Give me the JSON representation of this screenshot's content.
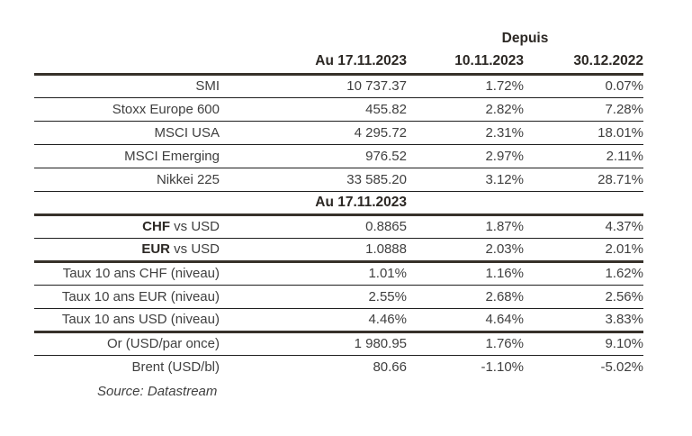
{
  "header": {
    "depuis_label": "Depuis",
    "columns": [
      "Au 17.11.2023",
      "10.11.2023",
      "30.12.2022"
    ]
  },
  "table": {
    "rows": [
      {
        "label": "SMI",
        "values": [
          "10 737.37",
          "1.72%",
          "0.07%"
        ],
        "rule": "thin"
      },
      {
        "label": "Stoxx Europe 600",
        "values": [
          "455.82",
          "2.82%",
          "7.28%"
        ],
        "rule": "thin"
      },
      {
        "label": "MSCI USA",
        "values": [
          "4 295.72",
          "2.31%",
          "18.01%"
        ],
        "rule": "thin"
      },
      {
        "label": "MSCI Emerging",
        "values": [
          "976.52",
          "2.97%",
          "2.11%"
        ],
        "rule": "thin"
      },
      {
        "label": "Nikkei 225",
        "values": [
          "33 585.20",
          "3.12%",
          "28.71%"
        ],
        "rule": "thin"
      },
      {
        "subtitle": "Au 17.11.2023",
        "rule": "thick"
      },
      {
        "label_bold": "CHF",
        "label": " vs USD",
        "values": [
          "0.8865",
          "1.87%",
          "4.37%"
        ],
        "rule": "thin"
      },
      {
        "label_bold": "EUR",
        "label": " vs USD",
        "values": [
          "1.0888",
          "2.03%",
          "2.01%"
        ],
        "rule": "thick"
      },
      {
        "label": "Taux 10 ans CHF (niveau)",
        "values": [
          "1.01%",
          "1.16%",
          "1.62%"
        ],
        "rule": "thin"
      },
      {
        "label": "Taux 10 ans EUR (niveau)",
        "values": [
          "2.55%",
          "2.68%",
          "2.56%"
        ],
        "rule": "thin"
      },
      {
        "label": "Taux 10 ans USD (niveau)",
        "values": [
          "4.46%",
          "4.64%",
          "3.83%"
        ],
        "rule": "thick"
      },
      {
        "label": "Or (USD/par once)",
        "values": [
          "1 980.95",
          "1.76%",
          "9.10%"
        ],
        "rule": "thin"
      },
      {
        "label": "Brent (USD/bl)",
        "values": [
          "80.66",
          "-1.10%",
          "-5.02%"
        ],
        "rule": "none"
      }
    ]
  },
  "footer": {
    "source": "Source: Datastream"
  },
  "colors": {
    "rule_heavy": "#37312a",
    "rule_light": "#1f1f1f",
    "text_main": "#3f3f3f",
    "text_strong": "#2c2824"
  }
}
